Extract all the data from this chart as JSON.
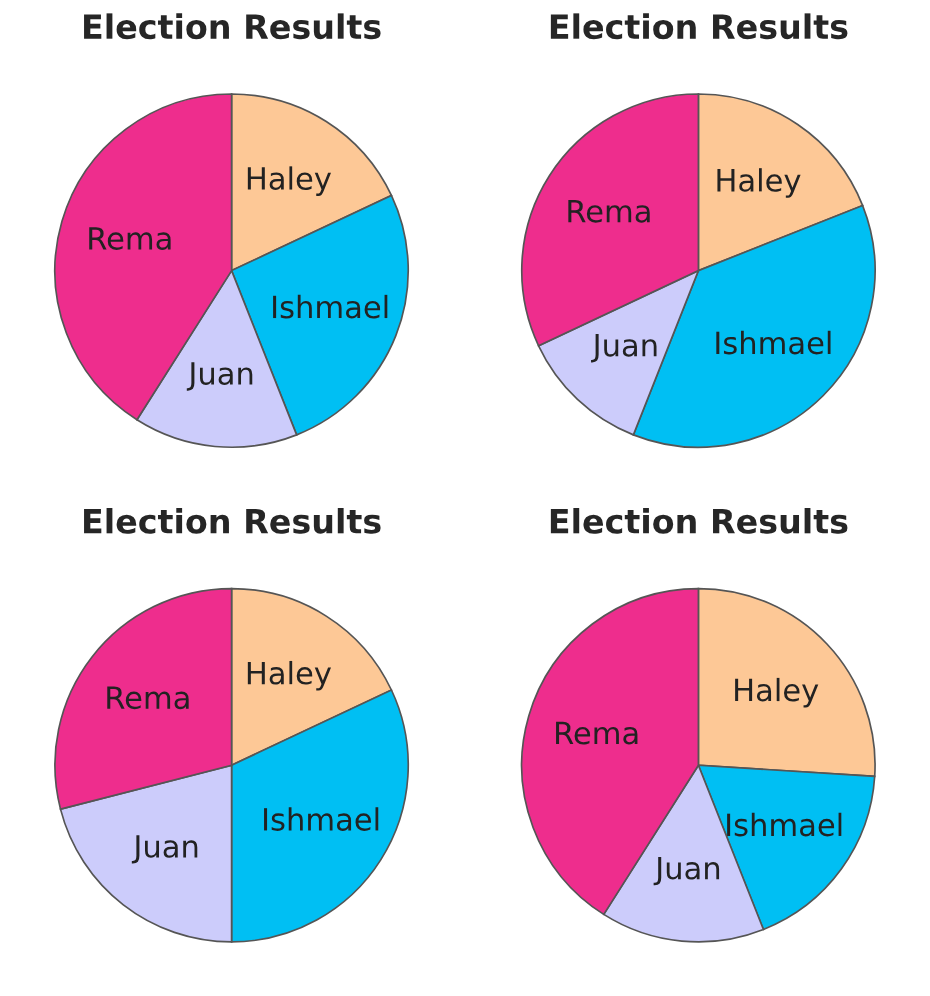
{
  "chart_data": [
    {
      "type": "pie",
      "title": "Election Results",
      "categories": [
        "Haley",
        "Ishmael",
        "Juan",
        "Rema"
      ],
      "values": [
        18,
        26,
        15,
        41
      ],
      "colors": [
        "#fdc896",
        "#00bff3",
        "#ccccfb",
        "#ee2d8d"
      ]
    },
    {
      "type": "pie",
      "title": "Election Results",
      "categories": [
        "Haley",
        "Ishmael",
        "Juan",
        "Rema"
      ],
      "values": [
        19,
        37,
        12,
        32
      ],
      "colors": [
        "#fdc896",
        "#00bff3",
        "#ccccfb",
        "#ee2d8d"
      ]
    },
    {
      "type": "pie",
      "title": "Election Results",
      "categories": [
        "Haley",
        "Ishmael",
        "Juan",
        "Rema"
      ],
      "values": [
        18,
        32,
        21,
        29
      ],
      "colors": [
        "#fdc896",
        "#00bff3",
        "#ccccfb",
        "#ee2d8d"
      ]
    },
    {
      "type": "pie",
      "title": "Election Results",
      "categories": [
        "Haley",
        "Ishmael",
        "Juan",
        "Rema"
      ],
      "values": [
        26,
        18,
        15,
        41
      ],
      "colors": [
        "#fdc896",
        "#00bff3",
        "#ccccfb",
        "#ee2d8d"
      ]
    }
  ]
}
